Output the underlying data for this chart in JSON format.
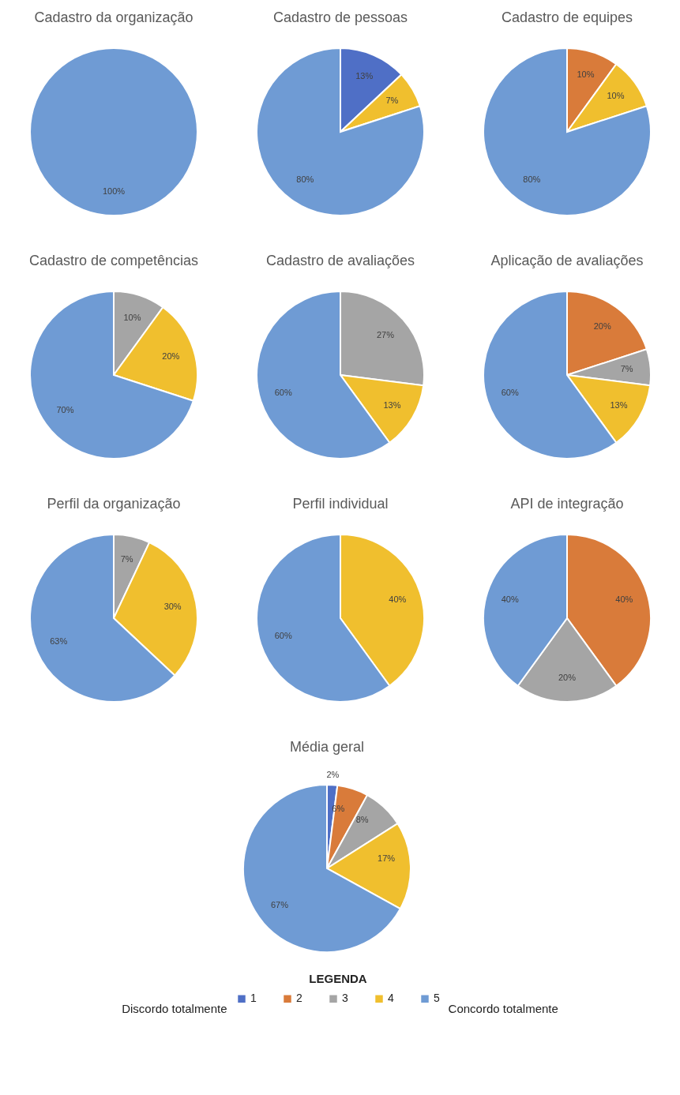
{
  "chart_data": [
    {
      "type": "pie",
      "title": "Cadastro da organização",
      "categories": [
        null
      ],
      "values": [
        100
      ],
      "colors": [
        "#6f9bd4"
      ],
      "value_labels": [
        "100%"
      ]
    },
    {
      "type": "pie",
      "title": "Cadastro de pessoas",
      "categories": [
        null,
        null,
        null
      ],
      "values": [
        13,
        7,
        80
      ],
      "colors": [
        "#4f6fc6",
        "#f0bf2e",
        "#6f9bd4"
      ],
      "value_labels": [
        "13%",
        "7%",
        "80%"
      ]
    },
    {
      "type": "pie",
      "title": "Cadastro de equipes",
      "categories": [
        null,
        null,
        null
      ],
      "values": [
        10,
        10,
        80
      ],
      "colors": [
        "#d97b3a",
        "#f0bf2e",
        "#6f9bd4"
      ],
      "value_labels": [
        "10%",
        "10%",
        "80%"
      ]
    },
    {
      "type": "pie",
      "title": "Cadastro de competências",
      "categories": [
        null,
        null,
        null
      ],
      "values": [
        10,
        20,
        70
      ],
      "colors": [
        "#a5a5a5",
        "#f0bf2e",
        "#6f9bd4"
      ],
      "value_labels": [
        "10%",
        "20%",
        "70%"
      ]
    },
    {
      "type": "pie",
      "title": "Cadastro de avaliações",
      "categories": [
        null,
        null,
        null
      ],
      "values": [
        27,
        13,
        60
      ],
      "colors": [
        "#a5a5a5",
        "#f0bf2e",
        "#6f9bd4"
      ],
      "value_labels": [
        "27%",
        "13%",
        "60%"
      ]
    },
    {
      "type": "pie",
      "title": "Aplicação de avaliações",
      "categories": [
        null,
        null,
        null,
        null
      ],
      "values": [
        20,
        7,
        13,
        60
      ],
      "colors": [
        "#d97b3a",
        "#a5a5a5",
        "#f0bf2e",
        "#6f9bd4"
      ],
      "value_labels": [
        "20%",
        "7%",
        "13%",
        "60%"
      ]
    },
    {
      "type": "pie",
      "title": "Perfil da organização",
      "categories": [
        null,
        null,
        null
      ],
      "values": [
        7,
        30,
        63
      ],
      "colors": [
        "#a5a5a5",
        "#f0bf2e",
        "#6f9bd4"
      ],
      "value_labels": [
        "7%",
        "30%",
        "63%"
      ]
    },
    {
      "type": "pie",
      "title": "Perfil individual",
      "categories": [
        null,
        null
      ],
      "values": [
        40,
        60
      ],
      "colors": [
        "#f0bf2e",
        "#6f9bd4"
      ],
      "value_labels": [
        "40%",
        "60%"
      ]
    },
    {
      "type": "pie",
      "title": "API de integração",
      "categories": [
        null,
        null,
        null
      ],
      "values": [
        40,
        20,
        40
      ],
      "colors": [
        "#d97b3a",
        "#a5a5a5",
        "#6f9bd4"
      ],
      "value_labels": [
        "40%",
        "20%",
        "40%"
      ]
    },
    {
      "type": "pie",
      "title": "Média geral",
      "categories": [
        "1",
        "2",
        "3",
        "4",
        "5"
      ],
      "values": [
        2,
        6,
        8,
        17,
        67
      ],
      "colors": [
        "#4f6fc6",
        "#d97b3a",
        "#a5a5a5",
        "#f0bf2e",
        "#6f9bd4"
      ],
      "value_labels": [
        "2%",
        "6%",
        "8%",
        "17%",
        "67%"
      ],
      "legend": "bottom",
      "legend_title": "LEGENDA",
      "annotations": [
        "Discordo totalmente",
        "Concordo totalmente"
      ]
    }
  ]
}
